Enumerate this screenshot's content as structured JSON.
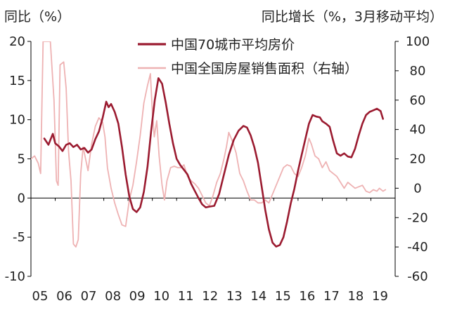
{
  "chart_data": {
    "type": "line",
    "left_axis": {
      "title": "同比（%）",
      "ylim": [
        -10,
        20
      ],
      "ticks": [
        20,
        15,
        10,
        5,
        0,
        -5,
        -10
      ],
      "tick_labels": [
        "20",
        "15",
        "10",
        "5",
        "0",
        "-5",
        "-10"
      ]
    },
    "right_axis": {
      "title": "同比增长（%，3月移动平均）",
      "ylim": [
        -60,
        100
      ],
      "ticks": [
        100,
        80,
        60,
        40,
        20,
        0,
        -20,
        -40,
        -60
      ],
      "tick_labels": [
        "100",
        "80",
        "60",
        "40",
        "20",
        "0",
        "-20",
        "-40",
        "-60"
      ]
    },
    "xlim": [
      2005.0,
      2020.0
    ],
    "x_ticks": [
      2005,
      2006,
      2007,
      2008,
      2009,
      2010,
      2011,
      2012,
      2013,
      2014,
      2015,
      2016,
      2017,
      2018,
      2019
    ],
    "x_tick_labels": [
      "05",
      "06",
      "07",
      "08",
      "09",
      "10",
      "11",
      "12",
      "13",
      "14",
      "15",
      "16",
      "17",
      "18",
      "19"
    ],
    "legend_position": "top-center",
    "series": [
      {
        "name": "中国70城市平均房价",
        "axis": "left",
        "color": "#9b1b30",
        "width": 2.6,
        "points": [
          [
            2005.55,
            7.6
          ],
          [
            2005.72,
            6.8
          ],
          [
            2005.9,
            8.2
          ],
          [
            2006.0,
            7.0
          ],
          [
            2006.15,
            6.6
          ],
          [
            2006.3,
            6.0
          ],
          [
            2006.45,
            6.8
          ],
          [
            2006.6,
            7.0
          ],
          [
            2006.75,
            6.5
          ],
          [
            2006.9,
            6.8
          ],
          [
            2007.05,
            6.2
          ],
          [
            2007.2,
            6.4
          ],
          [
            2007.35,
            5.8
          ],
          [
            2007.5,
            6.2
          ],
          [
            2007.65,
            7.5
          ],
          [
            2007.8,
            8.5
          ],
          [
            2007.95,
            10.2
          ],
          [
            2008.1,
            12.3
          ],
          [
            2008.2,
            11.6
          ],
          [
            2008.3,
            12.0
          ],
          [
            2008.45,
            11.0
          ],
          [
            2008.6,
            9.5
          ],
          [
            2008.75,
            6.5
          ],
          [
            2008.9,
            3.0
          ],
          [
            2009.05,
            0.2
          ],
          [
            2009.2,
            -1.4
          ],
          [
            2009.35,
            -1.8
          ],
          [
            2009.5,
            -1.2
          ],
          [
            2009.65,
            0.8
          ],
          [
            2009.8,
            4.0
          ],
          [
            2009.95,
            8.5
          ],
          [
            2010.1,
            12.5
          ],
          [
            2010.25,
            15.3
          ],
          [
            2010.4,
            14.6
          ],
          [
            2010.55,
            12.2
          ],
          [
            2010.7,
            9.5
          ],
          [
            2010.85,
            7.0
          ],
          [
            2011.0,
            5.0
          ],
          [
            2011.15,
            4.2
          ],
          [
            2011.3,
            3.6
          ],
          [
            2011.45,
            3.0
          ],
          [
            2011.6,
            1.8
          ],
          [
            2011.75,
            0.9
          ],
          [
            2011.9,
            0.0
          ],
          [
            2012.05,
            -0.8
          ],
          [
            2012.2,
            -1.2
          ],
          [
            2012.35,
            -1.1
          ],
          [
            2012.55,
            -1.0
          ],
          [
            2012.75,
            0.5
          ],
          [
            2012.95,
            3.0
          ],
          [
            2013.15,
            5.5
          ],
          [
            2013.35,
            7.4
          ],
          [
            2013.55,
            8.6
          ],
          [
            2013.75,
            9.2
          ],
          [
            2013.9,
            9.0
          ],
          [
            2014.05,
            8.0
          ],
          [
            2014.2,
            6.5
          ],
          [
            2014.35,
            4.5
          ],
          [
            2014.5,
            1.5
          ],
          [
            2014.65,
            -1.5
          ],
          [
            2014.8,
            -4.0
          ],
          [
            2014.95,
            -5.7
          ],
          [
            2015.1,
            -6.2
          ],
          [
            2015.25,
            -6.0
          ],
          [
            2015.4,
            -5.0
          ],
          [
            2015.55,
            -3.0
          ],
          [
            2015.7,
            -0.7
          ],
          [
            2015.85,
            1.2
          ],
          [
            2016.0,
            3.5
          ],
          [
            2016.15,
            5.5
          ],
          [
            2016.3,
            7.5
          ],
          [
            2016.45,
            9.5
          ],
          [
            2016.6,
            10.6
          ],
          [
            2016.75,
            10.4
          ],
          [
            2016.9,
            10.3
          ],
          [
            2017.0,
            9.8
          ],
          [
            2017.15,
            9.5
          ],
          [
            2017.3,
            9.1
          ],
          [
            2017.45,
            7.3
          ],
          [
            2017.6,
            5.7
          ],
          [
            2017.75,
            5.4
          ],
          [
            2017.9,
            5.7
          ],
          [
            2018.05,
            5.3
          ],
          [
            2018.2,
            5.2
          ],
          [
            2018.35,
            6.3
          ],
          [
            2018.5,
            8.0
          ],
          [
            2018.65,
            9.5
          ],
          [
            2018.8,
            10.6
          ],
          [
            2018.95,
            11.0
          ],
          [
            2019.1,
            11.2
          ],
          [
            2019.25,
            11.4
          ],
          [
            2019.4,
            11.1
          ],
          [
            2019.5,
            10.1
          ]
        ]
      },
      {
        "name": "中国全国房屋销售面积（右轴）",
        "axis": "right",
        "color": "#eeb2b3",
        "width": 1.8,
        "points": [
          [
            2005.0,
            20
          ],
          [
            2005.15,
            22
          ],
          [
            2005.3,
            17
          ],
          [
            2005.4,
            10
          ],
          [
            2005.5,
            100
          ],
          [
            2005.6,
            100
          ],
          [
            2005.7,
            100
          ],
          [
            2005.8,
            100
          ],
          [
            2005.95,
            60
          ],
          [
            2006.05,
            5
          ],
          [
            2006.12,
            2
          ],
          [
            2006.2,
            84
          ],
          [
            2006.35,
            86
          ],
          [
            2006.45,
            68
          ],
          [
            2006.55,
            25
          ],
          [
            2006.65,
            5
          ],
          [
            2006.75,
            -38
          ],
          [
            2006.85,
            -40
          ],
          [
            2006.95,
            -35
          ],
          [
            2007.05,
            10
          ],
          [
            2007.15,
            28
          ],
          [
            2007.25,
            20
          ],
          [
            2007.35,
            12
          ],
          [
            2007.5,
            30
          ],
          [
            2007.65,
            42
          ],
          [
            2007.8,
            48
          ],
          [
            2007.95,
            45
          ],
          [
            2008.05,
            35
          ],
          [
            2008.15,
            14
          ],
          [
            2008.3,
            0
          ],
          [
            2008.45,
            -10
          ],
          [
            2008.6,
            -18
          ],
          [
            2008.75,
            -25
          ],
          [
            2008.9,
            -26
          ],
          [
            2009.05,
            -8
          ],
          [
            2009.2,
            2
          ],
          [
            2009.35,
            18
          ],
          [
            2009.5,
            36
          ],
          [
            2009.65,
            58
          ],
          [
            2009.8,
            70
          ],
          [
            2009.92,
            78
          ],
          [
            2010.0,
            52
          ],
          [
            2010.08,
            35
          ],
          [
            2010.18,
            46
          ],
          [
            2010.28,
            22
          ],
          [
            2010.4,
            2
          ],
          [
            2010.5,
            -8
          ],
          [
            2010.6,
            5
          ],
          [
            2010.75,
            14
          ],
          [
            2010.9,
            15
          ],
          [
            2011.05,
            14
          ],
          [
            2011.2,
            14
          ],
          [
            2011.3,
            16
          ],
          [
            2011.45,
            8
          ],
          [
            2011.6,
            5
          ],
          [
            2011.75,
            3
          ],
          [
            2011.9,
            0
          ],
          [
            2012.05,
            -5
          ],
          [
            2012.2,
            -10
          ],
          [
            2012.35,
            -12
          ],
          [
            2012.5,
            -5
          ],
          [
            2012.65,
            4
          ],
          [
            2012.8,
            10
          ],
          [
            2012.95,
            20
          ],
          [
            2013.05,
            28
          ],
          [
            2013.15,
            38
          ],
          [
            2013.3,
            32
          ],
          [
            2013.45,
            24
          ],
          [
            2013.6,
            10
          ],
          [
            2013.75,
            5
          ],
          [
            2013.9,
            -2
          ],
          [
            2014.05,
            -8
          ],
          [
            2014.2,
            -8
          ],
          [
            2014.35,
            -10
          ],
          [
            2014.5,
            -10
          ],
          [
            2014.65,
            -8
          ],
          [
            2014.8,
            -10
          ],
          [
            2014.95,
            -4
          ],
          [
            2015.1,
            2
          ],
          [
            2015.25,
            8
          ],
          [
            2015.4,
            14
          ],
          [
            2015.55,
            16
          ],
          [
            2015.7,
            15
          ],
          [
            2015.85,
            10
          ],
          [
            2016.0,
            8
          ],
          [
            2016.15,
            14
          ],
          [
            2016.3,
            22
          ],
          [
            2016.45,
            34
          ],
          [
            2016.55,
            30
          ],
          [
            2016.7,
            22
          ],
          [
            2016.85,
            20
          ],
          [
            2017.0,
            14
          ],
          [
            2017.15,
            18
          ],
          [
            2017.3,
            12
          ],
          [
            2017.45,
            10
          ],
          [
            2017.6,
            8
          ],
          [
            2017.75,
            4
          ],
          [
            2017.9,
            0
          ],
          [
            2018.05,
            4
          ],
          [
            2018.2,
            2
          ],
          [
            2018.35,
            0
          ],
          [
            2018.5,
            1
          ],
          [
            2018.65,
            2
          ],
          [
            2018.8,
            -2
          ],
          [
            2018.95,
            -3
          ],
          [
            2019.1,
            -1
          ],
          [
            2019.25,
            -2
          ],
          [
            2019.35,
            0
          ],
          [
            2019.5,
            -2
          ],
          [
            2019.6,
            -1
          ]
        ]
      }
    ]
  }
}
